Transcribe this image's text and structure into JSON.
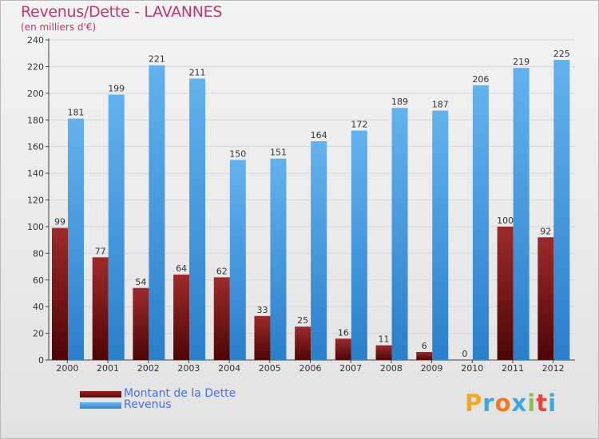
{
  "chart_data": {
    "type": "bar",
    "title": "Revenus/Dette - LAVANNES",
    "subtitle": "(en milliers d'€)",
    "categories": [
      "2000",
      "2001",
      "2002",
      "2003",
      "2004",
      "2005",
      "2006",
      "2007",
      "2008",
      "2009",
      "2010",
      "2011",
      "2012"
    ],
    "series": [
      {
        "name": "Montant de la Dette",
        "color": "#6e0f0f",
        "values": [
          99,
          77,
          54,
          64,
          62,
          33,
          25,
          16,
          11,
          6,
          0,
          100,
          92
        ]
      },
      {
        "name": "Revenus",
        "color": "#3d94dd",
        "values": [
          181,
          199,
          221,
          211,
          150,
          151,
          164,
          172,
          189,
          187,
          206,
          219,
          225
        ]
      }
    ],
    "ylim": [
      0,
      240
    ],
    "yticks": [
      0,
      20,
      40,
      60,
      80,
      100,
      120,
      140,
      160,
      180,
      200,
      220,
      240
    ],
    "grid": true,
    "legend_position": "bottom-left"
  },
  "logo": {
    "letters": [
      "P",
      "r",
      "o",
      "x",
      "i",
      "t",
      "i"
    ],
    "colors": [
      "#f5a623",
      "#3aa9e0",
      "#f07a1a",
      "#3aa9e0",
      "#8bc34a",
      "#e8443a",
      "#3aa9e0"
    ]
  }
}
